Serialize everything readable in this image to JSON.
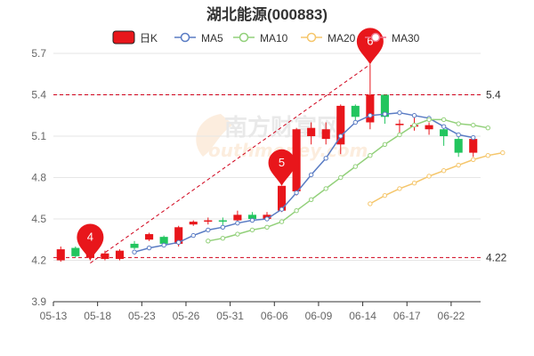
{
  "title": "湖北能源(000883)",
  "watermark": {
    "cn": "南方财富网",
    "en": "outhmoney.com"
  },
  "colors": {
    "up": "#e8161b",
    "down": "#22c55e",
    "ma5": "#5a7cc4",
    "ma10": "#92d07a",
    "ma20": "#f5c66b",
    "ma30": "#f07088",
    "grid": "#e6e6e6",
    "ref": "#d0021b",
    "axis": "#333333",
    "pin": "#e8161b"
  },
  "legend": [
    {
      "key": "kline",
      "label": "日K",
      "icon": "candle-icon"
    },
    {
      "key": "ma5",
      "label": "MA5",
      "icon": "line-circle-icon"
    },
    {
      "key": "ma10",
      "label": "MA10",
      "icon": "line-circle-icon"
    },
    {
      "key": "ma20",
      "label": "MA20",
      "icon": "line-circle-icon"
    },
    {
      "key": "ma30",
      "label": "MA30",
      "icon": "line-circle-icon"
    }
  ],
  "chart_data": {
    "type": "candlestick",
    "title": "湖北能源(000883)",
    "ylim": [
      3.9,
      5.7
    ],
    "yticks": [
      3.9,
      4.2,
      4.5,
      4.8,
      5.1,
      5.4,
      5.7
    ],
    "grid": true,
    "legend_position": "top",
    "xtick_labels": [
      "05-13",
      "05-18",
      "05-23",
      "05-26",
      "05-31",
      "06-06",
      "06-09",
      "06-14",
      "06-17",
      "06-22"
    ],
    "xtick_index": [
      0,
      3,
      6,
      9,
      12,
      15,
      18,
      21,
      24,
      27
    ],
    "candles": [
      {
        "o": 4.28,
        "c": 4.2,
        "h": 4.3,
        "l": 4.19
      },
      {
        "o": 4.23,
        "c": 4.29,
        "h": 4.3,
        "l": 4.22
      },
      {
        "o": 4.29,
        "c": 4.22,
        "h": 4.31,
        "l": 4.2
      },
      {
        "o": 4.25,
        "c": 4.21,
        "h": 4.27,
        "l": 4.2
      },
      {
        "o": 4.27,
        "c": 4.21,
        "h": 4.28,
        "l": 4.2
      },
      {
        "o": 4.29,
        "c": 4.32,
        "h": 4.34,
        "l": 4.28
      },
      {
        "o": 4.39,
        "c": 4.35,
        "h": 4.4,
        "l": 4.34
      },
      {
        "o": 4.32,
        "c": 4.37,
        "h": 4.38,
        "l": 4.31
      },
      {
        "o": 4.44,
        "c": 4.32,
        "h": 4.45,
        "l": 4.3
      },
      {
        "o": 4.48,
        "c": 4.46,
        "h": 4.49,
        "l": 4.45
      },
      {
        "o": 4.49,
        "c": 4.48,
        "h": 4.51,
        "l": 4.46
      },
      {
        "o": 4.49,
        "c": 4.49,
        "h": 4.51,
        "l": 4.45
      },
      {
        "o": 4.53,
        "c": 4.49,
        "h": 4.56,
        "l": 4.47
      },
      {
        "o": 4.5,
        "c": 4.53,
        "h": 4.55,
        "l": 4.49
      },
      {
        "o": 4.53,
        "c": 4.5,
        "h": 4.55,
        "l": 4.49
      },
      {
        "o": 4.74,
        "c": 4.56,
        "h": 4.74,
        "l": 4.55
      },
      {
        "o": 5.15,
        "c": 4.7,
        "h": 5.16,
        "l": 4.67
      },
      {
        "o": 5.16,
        "c": 5.1,
        "h": 5.2,
        "l": 5.04
      },
      {
        "o": 5.15,
        "c": 5.08,
        "h": 5.2,
        "l": 5.04
      },
      {
        "o": 5.32,
        "c": 5.04,
        "h": 5.33,
        "l": 4.97
      },
      {
        "o": 5.24,
        "c": 5.32,
        "h": 5.33,
        "l": 5.2
      },
      {
        "o": 5.4,
        "c": 5.2,
        "h": 5.62,
        "l": 5.15
      },
      {
        "o": 5.24,
        "c": 5.4,
        "h": 5.4,
        "l": 5.19
      },
      {
        "o": 5.19,
        "c": 5.18,
        "h": 5.22,
        "l": 5.12
      },
      {
        "o": 5.18,
        "c": 5.17,
        "h": 5.24,
        "l": 5.14
      },
      {
        "o": 5.18,
        "c": 5.15,
        "h": 5.2,
        "l": 5.11
      },
      {
        "o": 5.1,
        "c": 5.15,
        "h": 5.17,
        "l": 5.03
      },
      {
        "o": 4.98,
        "c": 5.08,
        "h": 5.1,
        "l": 4.95
      },
      {
        "o": 5.08,
        "c": 4.98,
        "h": 5.1,
        "l": 4.95
      }
    ],
    "series": [
      {
        "name": "MA5",
        "start": 5,
        "values": [
          4.26,
          4.29,
          4.31,
          4.33,
          4.38,
          4.42,
          4.44,
          4.47,
          4.49,
          4.5,
          4.57,
          4.69,
          4.82,
          4.94,
          5.1,
          5.2,
          5.25,
          5.26,
          5.27,
          5.25,
          5.23,
          5.17,
          5.11,
          5.09
        ]
      },
      {
        "name": "MA10",
        "start": 10,
        "values": [
          4.34,
          4.36,
          4.39,
          4.42,
          4.44,
          4.48,
          4.56,
          4.64,
          4.72,
          4.8,
          4.88,
          4.96,
          5.04,
          5.11,
          5.18,
          5.22,
          5.22,
          5.19,
          5.18,
          5.16
        ]
      },
      {
        "name": "MA20",
        "start": 21,
        "values": [
          4.61,
          4.67,
          4.72,
          4.76,
          4.81,
          4.85,
          4.89,
          4.93,
          4.96,
          4.98
        ]
      },
      {
        "name": "MA30",
        "start": 29,
        "values": []
      }
    ],
    "reference_lines": [
      {
        "value": 5.4,
        "label": "5.4"
      },
      {
        "value": 4.22,
        "label": "4.22"
      }
    ],
    "annotations": [
      {
        "label": "4",
        "index": 2,
        "value": 4.2
      },
      {
        "label": "5",
        "index": 15,
        "value": 4.74
      },
      {
        "label": "6",
        "index": 21,
        "value": 5.62
      }
    ],
    "trend_line": {
      "from_index": 2,
      "from_value": 4.18,
      "to_index": 21,
      "to_value": 5.62
    }
  }
}
